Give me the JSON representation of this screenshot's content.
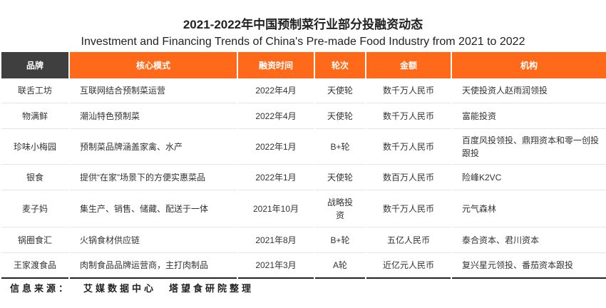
{
  "title_cn": "2021-2022年中国预制菜行业部分投融资动态",
  "title_en": "Investment and Financing Trends of China's Pre-made Food Industry from 2021 to 2022",
  "table": {
    "headers": [
      "品牌",
      "核心模式",
      "融资时间",
      "轮次",
      "金额",
      "机构"
    ],
    "rows": [
      [
        "联舌工坊",
        "互联网结合预制菜运营",
        "2022年4月",
        "天使轮",
        "数千万人民币",
        "天使投资人赵雨润领投"
      ],
      [
        "物满鲜",
        "潮汕特色预制菜",
        "2022年4月",
        "天使轮",
        "数千万人民币",
        "富能投资"
      ],
      [
        "珍味小梅园",
        "预制菜品牌涵盖家禽、水产",
        "2022年1月",
        "B+轮",
        "数千万人民币",
        "百度风投领投、鼎翔资本和零一创投跟投"
      ],
      [
        "银食",
        "提供“在家”场景下的方便实惠菜品",
        "2022年1月",
        "天使轮",
        "数百万人民币",
        "险峰K2VC"
      ],
      [
        "麦子妈",
        "集生产、销售、储藏、配送于一体",
        "2021年10月",
        "战略投资",
        "数千万人民币",
        "元气森林"
      ],
      [
        "锅圈食汇",
        "火锅食材供应链",
        "2021年8月",
        "B+轮",
        "五亿人民币",
        "泰合资本、君川资本"
      ],
      [
        "王家渡食品",
        "肉制食品品牌运营商，主打肉制品",
        "2021年3月",
        "A轮",
        "近亿元人民币",
        "复兴星元领投、番茄资本跟投"
      ]
    ]
  },
  "source": {
    "label": "信息来源：",
    "org1": "艾媒数据中心",
    "org2": "塔望食研院整理"
  },
  "colors": {
    "header_orange": "#ff6a1a",
    "header_dark": "#3f3f3f"
  }
}
